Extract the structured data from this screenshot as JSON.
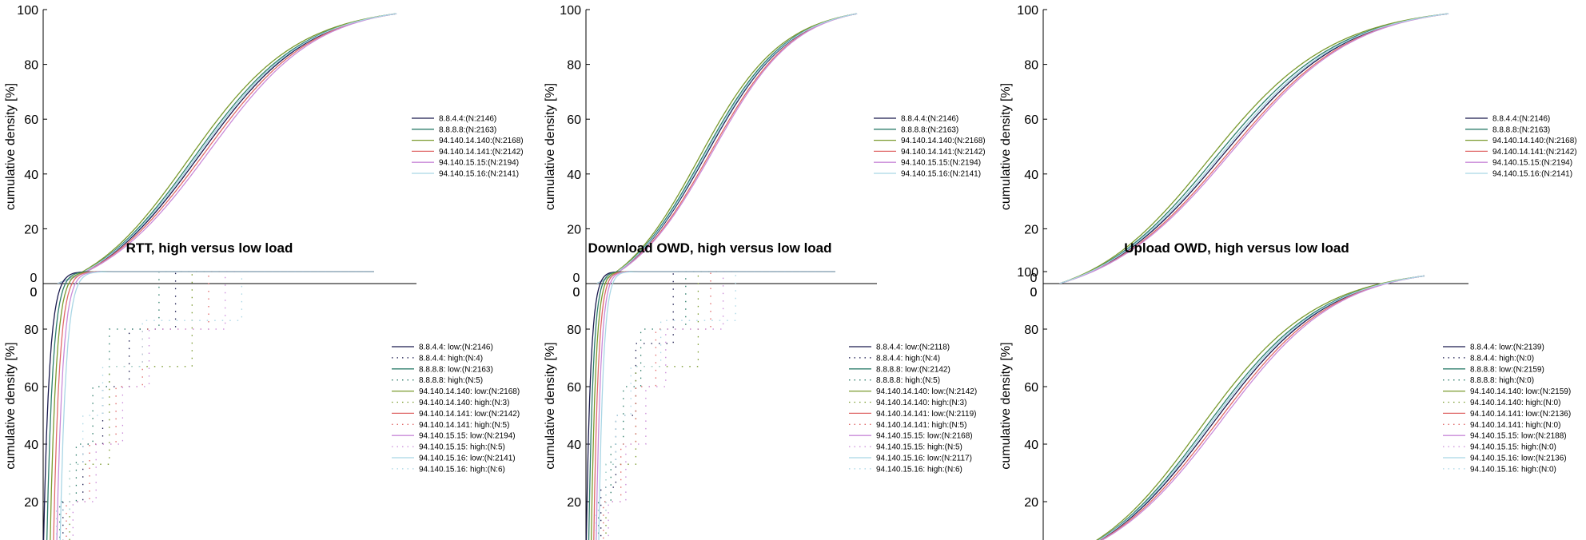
{
  "chart_data": [
    {
      "type": "line",
      "title": "",
      "xlabel": "",
      "ylabel": "cumulative density [%]",
      "ylim": [
        0,
        100
      ],
      "yticks": [
        "20",
        "40",
        "60",
        "80",
        "100"
      ],
      "x_tick_visible": [
        "0",
        "0"
      ],
      "legend_position": "right",
      "series": [
        {
          "name": "8.8.4.4:(N:2146)",
          "color": "#1a1a4e",
          "style": "solid",
          "offset": 0.0
        },
        {
          "name": "8.8.8.8:(N:2163)",
          "color": "#2e7d6b",
          "style": "solid",
          "offset": 0.012
        },
        {
          "name": "94.140.14.140:(N:2168)",
          "color": "#7a9a2e",
          "style": "solid",
          "offset": 0.025
        },
        {
          "name": "94.140.14.141:(N:2142)",
          "color": "#e06a6a",
          "style": "solid",
          "offset": -0.01
        },
        {
          "name": "94.140.15.15:(N:2194)",
          "color": "#c98ad8",
          "style": "solid",
          "offset": -0.02
        },
        {
          "name": "94.140.15.16:(N:2141)",
          "color": "#a9d6e5",
          "style": "solid",
          "offset": 0.006
        }
      ]
    },
    {
      "type": "line",
      "title": "",
      "xlabel": "",
      "ylabel": "cumulative density [%]",
      "ylim": [
        0,
        100
      ],
      "yticks": [
        "20",
        "40",
        "60",
        "80",
        "100"
      ],
      "x_tick_visible": [
        "0",
        "0"
      ],
      "legend_position": "right",
      "series": [
        {
          "name": "8.8.4.4:(N:2146)",
          "color": "#1a1a4e",
          "style": "solid",
          "offset": 0.0
        },
        {
          "name": "8.8.8.8:(N:2163)",
          "color": "#2e7d6b",
          "style": "solid",
          "offset": 0.01
        },
        {
          "name": "94.140.14.140:(N:2168)",
          "color": "#7a9a2e",
          "style": "solid",
          "offset": 0.022
        },
        {
          "name": "94.140.14.141:(N:2142)",
          "color": "#e06a6a",
          "style": "solid",
          "offset": -0.012
        },
        {
          "name": "94.140.15.15:(N:2194)",
          "color": "#c98ad8",
          "style": "solid",
          "offset": -0.018
        },
        {
          "name": "94.140.15.16:(N:2141)",
          "color": "#a9d6e5",
          "style": "solid",
          "offset": 0.004
        }
      ]
    },
    {
      "type": "line",
      "title": "",
      "xlabel": "",
      "ylabel": "cumulative density [%]",
      "ylim": [
        0,
        100
      ],
      "yticks": [
        "20",
        "40",
        "60",
        "80",
        "100"
      ],
      "x_tick_visible": [
        "0",
        "0"
      ],
      "legend_position": "right",
      "series": [
        {
          "name": "8.8.4.4:(N:2146)",
          "color": "#1a1a4e",
          "style": "solid",
          "offset": 0.0
        },
        {
          "name": "8.8.8.8:(N:2163)",
          "color": "#2e7d6b",
          "style": "solid",
          "offset": 0.014
        },
        {
          "name": "94.140.14.140:(N:2168)",
          "color": "#7a9a2e",
          "style": "solid",
          "offset": 0.028
        },
        {
          "name": "94.140.14.141:(N:2142)",
          "color": "#e06a6a",
          "style": "solid",
          "offset": -0.01
        },
        {
          "name": "94.140.15.15:(N:2194)",
          "color": "#c98ad8",
          "style": "solid",
          "offset": -0.016
        },
        {
          "name": "94.140.15.16:(N:2141)",
          "color": "#a9d6e5",
          "style": "solid",
          "offset": 0.006
        }
      ]
    },
    {
      "type": "line",
      "title": "RTT, high versus low load",
      "xlabel": "",
      "ylabel": "cumulative density [%]",
      "ylim": [
        0,
        100
      ],
      "yticks": [
        "20",
        "40",
        "60",
        "80"
      ],
      "x_tick_visible": [
        "0"
      ],
      "legend_position": "right",
      "low_curve": "steep",
      "series": [
        {
          "name": "8.8.4.4: low:(N:2146)",
          "color": "#1a1a4e",
          "style": "solid"
        },
        {
          "name": "8.8.4.4: high:(N:4)",
          "color": "#1a1a4e",
          "style": "dotted",
          "steps": [
            [
              0.06,
              20
            ],
            [
              0.12,
              40
            ],
            [
              0.18,
              60
            ],
            [
              0.26,
              80
            ],
            [
              0.4,
              100
            ]
          ]
        },
        {
          "name": "8.8.8.8: low:(N:2163)",
          "color": "#2e7d6b",
          "style": "solid"
        },
        {
          "name": "8.8.8.8: high:(N:5)",
          "color": "#2e7d6b",
          "style": "dotted",
          "steps": [
            [
              0.05,
              20
            ],
            [
              0.1,
              40
            ],
            [
              0.15,
              60
            ],
            [
              0.2,
              80
            ],
            [
              0.35,
              100
            ]
          ]
        },
        {
          "name": "94.140.14.140: low:(N:2168)",
          "color": "#7a9a2e",
          "style": "solid"
        },
        {
          "name": "94.140.14.140: high:(N:3)",
          "color": "#7a9a2e",
          "style": "dotted",
          "steps": [
            [
              0.08,
              33
            ],
            [
              0.2,
              67
            ],
            [
              0.45,
              100
            ]
          ]
        },
        {
          "name": "94.140.14.141: low:(N:2142)",
          "color": "#e06a6a",
          "style": "solid"
        },
        {
          "name": "94.140.14.141: high:(N:5)",
          "color": "#e06a6a",
          "style": "dotted",
          "steps": [
            [
              0.07,
              20
            ],
            [
              0.14,
              40
            ],
            [
              0.22,
              60
            ],
            [
              0.3,
              80
            ],
            [
              0.5,
              100
            ]
          ]
        },
        {
          "name": "94.140.15.15: low:(N:2194)",
          "color": "#c98ad8",
          "style": "solid"
        },
        {
          "name": "94.140.15.15: high:(N:5)",
          "color": "#c98ad8",
          "style": "dotted",
          "steps": [
            [
              0.09,
              20
            ],
            [
              0.16,
              40
            ],
            [
              0.24,
              60
            ],
            [
              0.32,
              80
            ],
            [
              0.55,
              100
            ]
          ]
        },
        {
          "name": "94.140.15.16: low:(N:2141)",
          "color": "#a9d6e5",
          "style": "solid"
        },
        {
          "name": "94.140.15.16: high:(N:6)",
          "color": "#a9d6e5",
          "style": "dotted",
          "steps": [
            [
              0.04,
              17
            ],
            [
              0.08,
              33
            ],
            [
              0.12,
              50
            ],
            [
              0.18,
              67
            ],
            [
              0.3,
              83
            ],
            [
              0.6,
              100
            ]
          ]
        }
      ]
    },
    {
      "type": "line",
      "title": "Download OWD, high versus low load",
      "xlabel": "",
      "ylabel": "cumulative density [%]",
      "ylim": [
        0,
        100
      ],
      "yticks": [
        "20",
        "40",
        "60",
        "80"
      ],
      "x_tick_visible": [
        "0"
      ],
      "legend_position": "right",
      "low_curve": "steep",
      "series": [
        {
          "name": "8.8.4.4: low:(N:2118)",
          "color": "#1a1a4e",
          "style": "solid"
        },
        {
          "name": "8.8.4.4: high:(N:4)",
          "color": "#1a1a4e",
          "style": "dotted",
          "steps": [
            [
              0.06,
              25
            ],
            [
              0.12,
              50
            ],
            [
              0.2,
              75
            ],
            [
              0.35,
              100
            ]
          ]
        },
        {
          "name": "8.8.8.8: low:(N:2142)",
          "color": "#2e7d6b",
          "style": "solid"
        },
        {
          "name": "8.8.8.8: high:(N:5)",
          "color": "#2e7d6b",
          "style": "dotted",
          "steps": [
            [
              0.05,
              20
            ],
            [
              0.1,
              40
            ],
            [
              0.15,
              60
            ],
            [
              0.22,
              80
            ],
            [
              0.4,
              100
            ]
          ]
        },
        {
          "name": "94.140.14.140: low:(N:2142)",
          "color": "#7a9a2e",
          "style": "solid"
        },
        {
          "name": "94.140.14.140: high:(N:3)",
          "color": "#7a9a2e",
          "style": "dotted",
          "steps": [
            [
              0.08,
              33
            ],
            [
              0.2,
              67
            ],
            [
              0.45,
              100
            ]
          ]
        },
        {
          "name": "94.140.14.141: low:(N:2119)",
          "color": "#e06a6a",
          "style": "solid"
        },
        {
          "name": "94.140.14.141: high:(N:5)",
          "color": "#e06a6a",
          "style": "dotted",
          "steps": [
            [
              0.07,
              20
            ],
            [
              0.14,
              40
            ],
            [
              0.2,
              60
            ],
            [
              0.28,
              80
            ],
            [
              0.5,
              100
            ]
          ]
        },
        {
          "name": "94.140.15.15: low:(N:2168)",
          "color": "#c98ad8",
          "style": "solid"
        },
        {
          "name": "94.140.15.15: high:(N:5)",
          "color": "#c98ad8",
          "style": "dotted",
          "steps": [
            [
              0.09,
              20
            ],
            [
              0.16,
              40
            ],
            [
              0.24,
              60
            ],
            [
              0.32,
              80
            ],
            [
              0.55,
              100
            ]
          ]
        },
        {
          "name": "94.140.15.16: low:(N:2117)",
          "color": "#a9d6e5",
          "style": "solid"
        },
        {
          "name": "94.140.15.16: high:(N:6)",
          "color": "#a9d6e5",
          "style": "dotted",
          "steps": [
            [
              0.04,
              17
            ],
            [
              0.08,
              33
            ],
            [
              0.12,
              50
            ],
            [
              0.18,
              67
            ],
            [
              0.3,
              83
            ],
            [
              0.6,
              100
            ]
          ]
        }
      ]
    },
    {
      "type": "line",
      "title": "Upload OWD, high versus low load",
      "xlabel": "",
      "ylabel": "cumulative density [%]",
      "ylim": [
        0,
        100
      ],
      "yticks": [
        "20",
        "40",
        "60",
        "80",
        "100"
      ],
      "x_tick_visible": [
        "0"
      ],
      "legend_position": "right",
      "low_curve": "gradual",
      "series": [
        {
          "name": "8.8.4.4: low:(N:2139)",
          "color": "#1a1a4e",
          "style": "solid",
          "offset": 0.0
        },
        {
          "name": "8.8.4.4: high:(N:0)",
          "color": "#1a1a4e",
          "style": "dotted"
        },
        {
          "name": "8.8.8.8: low:(N:2159)",
          "color": "#2e7d6b",
          "style": "solid",
          "offset": 0.012
        },
        {
          "name": "8.8.8.8: high:(N:0)",
          "color": "#2e7d6b",
          "style": "dotted"
        },
        {
          "name": "94.140.14.140: low:(N:2159)",
          "color": "#7a9a2e",
          "style": "solid",
          "offset": 0.026
        },
        {
          "name": "94.140.14.140: high:(N:0)",
          "color": "#7a9a2e",
          "style": "dotted"
        },
        {
          "name": "94.140.14.141: low:(N:2136)",
          "color": "#e06a6a",
          "style": "solid",
          "offset": -0.01
        },
        {
          "name": "94.140.14.141: high:(N:0)",
          "color": "#e06a6a",
          "style": "dotted"
        },
        {
          "name": "94.140.15.15: low:(N:2188)",
          "color": "#c98ad8",
          "style": "solid",
          "offset": -0.018
        },
        {
          "name": "94.140.15.15: high:(N:0)",
          "color": "#c98ad8",
          "style": "dotted"
        },
        {
          "name": "94.140.15.16: low:(N:2136)",
          "color": "#a9d6e5",
          "style": "solid",
          "offset": 0.006
        },
        {
          "name": "94.140.15.16: high:(N:0)",
          "color": "#a9d6e5",
          "style": "dotted"
        }
      ]
    }
  ]
}
